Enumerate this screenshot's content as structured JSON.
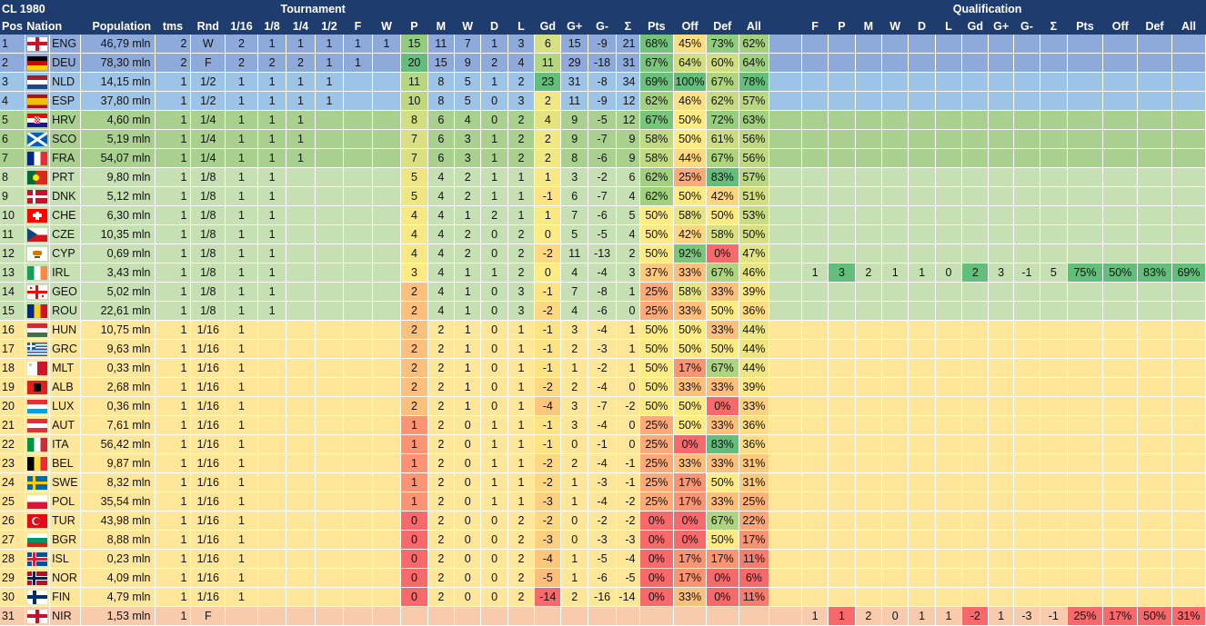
{
  "title": "CL 1980",
  "headers": {
    "group_tournament": "Tournament",
    "group_qualification": "Qualification",
    "main": [
      "Pos",
      "Nation",
      "Population",
      "tms",
      "Rnd",
      "1/16",
      "1/8",
      "1/4",
      "1/2",
      "F",
      "W",
      "P",
      "M",
      "W",
      "D",
      "L",
      "Gd",
      "G+",
      "G-",
      "Σ",
      "Pts",
      "Off",
      "Def",
      "All"
    ],
    "qual": [
      "F",
      "P",
      "M",
      "W",
      "D",
      "L",
      "Gd",
      "G+",
      "G-",
      "Σ",
      "Pts",
      "Off",
      "Def",
      "All"
    ]
  },
  "colors": {
    "header": "#1f3c6e",
    "band_blue": "#9dc3e6",
    "band_blue_dark": "#8eaadb",
    "band_green_dark": "#a9d08e",
    "band_green": "#c6e0b4",
    "band_yellow": "#ffe699",
    "band_salmon": "#f8cbad"
  },
  "rows": [
    {
      "pos": "1",
      "flag": "ENG",
      "nation": "ENG",
      "pop": "46,79 mln",
      "tms": "2",
      "rnd": "W",
      "rounds": [
        "2",
        "1",
        "1",
        "1",
        "1",
        "1"
      ],
      "p": "15",
      "m": "11",
      "w": "7",
      "d": "1",
      "l": "3",
      "gd": "6",
      "gp": "15",
      "gm": "-9",
      "s": "21",
      "pts": "68%",
      "off": "45%",
      "def": "73%",
      "all": "62%"
    },
    {
      "pos": "2",
      "flag": "DEU",
      "nation": "DEU",
      "pop": "78,30 mln",
      "tms": "2",
      "rnd": "F",
      "rounds": [
        "2",
        "2",
        "2",
        "1",
        "1",
        ""
      ],
      "p": "20",
      "m": "15",
      "w": "9",
      "d": "2",
      "l": "4",
      "gd": "11",
      "gp": "29",
      "gm": "-18",
      "s": "31",
      "pts": "67%",
      "off": "64%",
      "def": "60%",
      "all": "64%"
    },
    {
      "pos": "3",
      "flag": "NLD",
      "nation": "NLD",
      "pop": "14,15 mln",
      "tms": "1",
      "rnd": "1/2",
      "rounds": [
        "1",
        "1",
        "1",
        "1",
        "",
        ""
      ],
      "p": "11",
      "m": "8",
      "w": "5",
      "d": "1",
      "l": "2",
      "gd": "23",
      "gp": "31",
      "gm": "-8",
      "s": "34",
      "pts": "69%",
      "off": "100%",
      "def": "67%",
      "all": "78%"
    },
    {
      "pos": "4",
      "flag": "ESP",
      "nation": "ESP",
      "pop": "37,80 mln",
      "tms": "1",
      "rnd": "1/2",
      "rounds": [
        "1",
        "1",
        "1",
        "1",
        "",
        ""
      ],
      "p": "10",
      "m": "8",
      "w": "5",
      "d": "0",
      "l": "3",
      "gd": "2",
      "gp": "11",
      "gm": "-9",
      "s": "12",
      "pts": "62%",
      "off": "46%",
      "def": "62%",
      "all": "57%"
    },
    {
      "pos": "5",
      "flag": "HRV",
      "nation": "HRV",
      "pop": "4,60 mln",
      "tms": "1",
      "rnd": "1/4",
      "rounds": [
        "1",
        "1",
        "1",
        "",
        "",
        ""
      ],
      "p": "8",
      "m": "6",
      "w": "4",
      "d": "0",
      "l": "2",
      "gd": "4",
      "gp": "9",
      "gm": "-5",
      "s": "12",
      "pts": "67%",
      "off": "50%",
      "def": "72%",
      "all": "63%"
    },
    {
      "pos": "6",
      "flag": "SCO",
      "nation": "SCO",
      "pop": "5,19 mln",
      "tms": "1",
      "rnd": "1/4",
      "rounds": [
        "1",
        "1",
        "1",
        "",
        "",
        ""
      ],
      "p": "7",
      "m": "6",
      "w": "3",
      "d": "1",
      "l": "2",
      "gd": "2",
      "gp": "9",
      "gm": "-7",
      "s": "9",
      "pts": "58%",
      "off": "50%",
      "def": "61%",
      "all": "56%"
    },
    {
      "pos": "7",
      "flag": "FRA",
      "nation": "FRA",
      "pop": "54,07 mln",
      "tms": "1",
      "rnd": "1/4",
      "rounds": [
        "1",
        "1",
        "1",
        "",
        "",
        ""
      ],
      "p": "7",
      "m": "6",
      "w": "3",
      "d": "1",
      "l": "2",
      "gd": "2",
      "gp": "8",
      "gm": "-6",
      "s": "9",
      "pts": "58%",
      "off": "44%",
      "def": "67%",
      "all": "56%"
    },
    {
      "pos": "8",
      "flag": "PRT",
      "nation": "PRT",
      "pop": "9,80 mln",
      "tms": "1",
      "rnd": "1/8",
      "rounds": [
        "1",
        "1",
        "",
        "",
        "",
        ""
      ],
      "p": "5",
      "m": "4",
      "w": "2",
      "d": "1",
      "l": "1",
      "gd": "1",
      "gp": "3",
      "gm": "-2",
      "s": "6",
      "pts": "62%",
      "off": "25%",
      "def": "83%",
      "all": "57%"
    },
    {
      "pos": "9",
      "flag": "DNK",
      "nation": "DNK",
      "pop": "5,12 mln",
      "tms": "1",
      "rnd": "1/8",
      "rounds": [
        "1",
        "1",
        "",
        "",
        "",
        ""
      ],
      "p": "5",
      "m": "4",
      "w": "2",
      "d": "1",
      "l": "1",
      "gd": "-1",
      "gp": "6",
      "gm": "-7",
      "s": "4",
      "pts": "62%",
      "off": "50%",
      "def": "42%",
      "all": "51%"
    },
    {
      "pos": "10",
      "flag": "CHE",
      "nation": "CHE",
      "pop": "6,30 mln",
      "tms": "1",
      "rnd": "1/8",
      "rounds": [
        "1",
        "1",
        "",
        "",
        "",
        ""
      ],
      "p": "4",
      "m": "4",
      "w": "1",
      "d": "2",
      "l": "1",
      "gd": "1",
      "gp": "7",
      "gm": "-6",
      "s": "5",
      "pts": "50%",
      "off": "58%",
      "def": "50%",
      "all": "53%"
    },
    {
      "pos": "11",
      "flag": "CZE",
      "nation": "CZE",
      "pop": "10,35 mln",
      "tms": "1",
      "rnd": "1/8",
      "rounds": [
        "1",
        "1",
        "",
        "",
        "",
        ""
      ],
      "p": "4",
      "m": "4",
      "w": "2",
      "d": "0",
      "l": "2",
      "gd": "0",
      "gp": "5",
      "gm": "-5",
      "s": "4",
      "pts": "50%",
      "off": "42%",
      "def": "58%",
      "all": "50%"
    },
    {
      "pos": "12",
      "flag": "CYP",
      "nation": "CYP",
      "pop": "0,69 mln",
      "tms": "1",
      "rnd": "1/8",
      "rounds": [
        "1",
        "1",
        "",
        "",
        "",
        ""
      ],
      "p": "4",
      "m": "4",
      "w": "2",
      "d": "0",
      "l": "2",
      "gd": "-2",
      "gp": "11",
      "gm": "-13",
      "s": "2",
      "pts": "50%",
      "off": "92%",
      "def": "0%",
      "all": "47%"
    },
    {
      "pos": "13",
      "flag": "IRL",
      "nation": "IRL",
      "pop": "3,43 mln",
      "tms": "1",
      "rnd": "1/8",
      "rounds": [
        "1",
        "1",
        "",
        "",
        "",
        ""
      ],
      "p": "3",
      "m": "4",
      "w": "1",
      "d": "1",
      "l": "2",
      "gd": "0",
      "gp": "4",
      "gm": "-4",
      "s": "3",
      "pts": "37%",
      "off": "33%",
      "def": "67%",
      "all": "46%",
      "qual": {
        "f": "1",
        "p": "3",
        "m": "2",
        "w": "1",
        "d": "1",
        "l": "0",
        "gd": "2",
        "gp": "3",
        "gm": "-1",
        "s": "5",
        "pts": "75%",
        "off": "50%",
        "def": "83%",
        "all": "69%"
      }
    },
    {
      "pos": "14",
      "flag": "GEO",
      "nation": "GEO",
      "pop": "5,02 mln",
      "tms": "1",
      "rnd": "1/8",
      "rounds": [
        "1",
        "1",
        "",
        "",
        "",
        ""
      ],
      "p": "2",
      "m": "4",
      "w": "1",
      "d": "0",
      "l": "3",
      "gd": "-1",
      "gp": "7",
      "gm": "-8",
      "s": "1",
      "pts": "25%",
      "off": "58%",
      "def": "33%",
      "all": "39%"
    },
    {
      "pos": "15",
      "flag": "ROU",
      "nation": "ROU",
      "pop": "22,61 mln",
      "tms": "1",
      "rnd": "1/8",
      "rounds": [
        "1",
        "1",
        "",
        "",
        "",
        ""
      ],
      "p": "2",
      "m": "4",
      "w": "1",
      "d": "0",
      "l": "3",
      "gd": "-2",
      "gp": "4",
      "gm": "-6",
      "s": "0",
      "pts": "25%",
      "off": "33%",
      "def": "50%",
      "all": "36%"
    },
    {
      "pos": "16",
      "flag": "HUN",
      "nation": "HUN",
      "pop": "10,75 mln",
      "tms": "1",
      "rnd": "1/16",
      "rounds": [
        "1",
        "",
        "",
        "",
        "",
        ""
      ],
      "p": "2",
      "m": "2",
      "w": "1",
      "d": "0",
      "l": "1",
      "gd": "-1",
      "gp": "3",
      "gm": "-4",
      "s": "1",
      "pts": "50%",
      "off": "50%",
      "def": "33%",
      "all": "44%"
    },
    {
      "pos": "17",
      "flag": "GRC",
      "nation": "GRC",
      "pop": "9,63 mln",
      "tms": "1",
      "rnd": "1/16",
      "rounds": [
        "1",
        "",
        "",
        "",
        "",
        ""
      ],
      "p": "2",
      "m": "2",
      "w": "1",
      "d": "0",
      "l": "1",
      "gd": "-1",
      "gp": "2",
      "gm": "-3",
      "s": "1",
      "pts": "50%",
      "off": "50%",
      "def": "50%",
      "all": "44%"
    },
    {
      "pos": "18",
      "flag": "MLT",
      "nation": "MLT",
      "pop": "0,33 mln",
      "tms": "1",
      "rnd": "1/16",
      "rounds": [
        "1",
        "",
        "",
        "",
        "",
        ""
      ],
      "p": "2",
      "m": "2",
      "w": "1",
      "d": "0",
      "l": "1",
      "gd": "-1",
      "gp": "1",
      "gm": "-2",
      "s": "1",
      "pts": "50%",
      "off": "17%",
      "def": "67%",
      "all": "44%"
    },
    {
      "pos": "19",
      "flag": "ALB",
      "nation": "ALB",
      "pop": "2,68 mln",
      "tms": "1",
      "rnd": "1/16",
      "rounds": [
        "1",
        "",
        "",
        "",
        "",
        ""
      ],
      "p": "2",
      "m": "2",
      "w": "1",
      "d": "0",
      "l": "1",
      "gd": "-2",
      "gp": "2",
      "gm": "-4",
      "s": "0",
      "pts": "50%",
      "off": "33%",
      "def": "33%",
      "all": "39%"
    },
    {
      "pos": "20",
      "flag": "LUX",
      "nation": "LUX",
      "pop": "0,36 mln",
      "tms": "1",
      "rnd": "1/16",
      "rounds": [
        "1",
        "",
        "",
        "",
        "",
        ""
      ],
      "p": "2",
      "m": "2",
      "w": "1",
      "d": "0",
      "l": "1",
      "gd": "-4",
      "gp": "3",
      "gm": "-7",
      "s": "-2",
      "pts": "50%",
      "off": "50%",
      "def": "0%",
      "all": "33%"
    },
    {
      "pos": "21",
      "flag": "AUT",
      "nation": "AUT",
      "pop": "7,61 mln",
      "tms": "1",
      "rnd": "1/16",
      "rounds": [
        "1",
        "",
        "",
        "",
        "",
        ""
      ],
      "p": "1",
      "m": "2",
      "w": "0",
      "d": "1",
      "l": "1",
      "gd": "-1",
      "gp": "3",
      "gm": "-4",
      "s": "0",
      "pts": "25%",
      "off": "50%",
      "def": "33%",
      "all": "36%"
    },
    {
      "pos": "22",
      "flag": "ITA",
      "nation": "ITA",
      "pop": "56,42 mln",
      "tms": "1",
      "rnd": "1/16",
      "rounds": [
        "1",
        "",
        "",
        "",
        "",
        ""
      ],
      "p": "1",
      "m": "2",
      "w": "0",
      "d": "1",
      "l": "1",
      "gd": "-1",
      "gp": "0",
      "gm": "-1",
      "s": "0",
      "pts": "25%",
      "off": "0%",
      "def": "83%",
      "all": "36%"
    },
    {
      "pos": "23",
      "flag": "BEL",
      "nation": "BEL",
      "pop": "9,87 mln",
      "tms": "1",
      "rnd": "1/16",
      "rounds": [
        "1",
        "",
        "",
        "",
        "",
        ""
      ],
      "p": "1",
      "m": "2",
      "w": "0",
      "d": "1",
      "l": "1",
      "gd": "-2",
      "gp": "2",
      "gm": "-4",
      "s": "-1",
      "pts": "25%",
      "off": "33%",
      "def": "33%",
      "all": "31%"
    },
    {
      "pos": "24",
      "flag": "SWE",
      "nation": "SWE",
      "pop": "8,32 mln",
      "tms": "1",
      "rnd": "1/16",
      "rounds": [
        "1",
        "",
        "",
        "",
        "",
        ""
      ],
      "p": "1",
      "m": "2",
      "w": "0",
      "d": "1",
      "l": "1",
      "gd": "-2",
      "gp": "1",
      "gm": "-3",
      "s": "-1",
      "pts": "25%",
      "off": "17%",
      "def": "50%",
      "all": "31%"
    },
    {
      "pos": "25",
      "flag": "POL",
      "nation": "POL",
      "pop": "35,54 mln",
      "tms": "1",
      "rnd": "1/16",
      "rounds": [
        "1",
        "",
        "",
        "",
        "",
        ""
      ],
      "p": "1",
      "m": "2",
      "w": "0",
      "d": "1",
      "l": "1",
      "gd": "-3",
      "gp": "1",
      "gm": "-4",
      "s": "-2",
      "pts": "25%",
      "off": "17%",
      "def": "33%",
      "all": "25%"
    },
    {
      "pos": "26",
      "flag": "TUR",
      "nation": "TUR",
      "pop": "43,98 mln",
      "tms": "1",
      "rnd": "1/16",
      "rounds": [
        "1",
        "",
        "",
        "",
        "",
        ""
      ],
      "p": "0",
      "m": "2",
      "w": "0",
      "d": "0",
      "l": "2",
      "gd": "-2",
      "gp": "0",
      "gm": "-2",
      "s": "-2",
      "pts": "0%",
      "off": "0%",
      "def": "67%",
      "all": "22%"
    },
    {
      "pos": "27",
      "flag": "BGR",
      "nation": "BGR",
      "pop": "8,88 mln",
      "tms": "1",
      "rnd": "1/16",
      "rounds": [
        "1",
        "",
        "",
        "",
        "",
        ""
      ],
      "p": "0",
      "m": "2",
      "w": "0",
      "d": "0",
      "l": "2",
      "gd": "-3",
      "gp": "0",
      "gm": "-3",
      "s": "-3",
      "pts": "0%",
      "off": "0%",
      "def": "50%",
      "all": "17%"
    },
    {
      "pos": "28",
      "flag": "ISL",
      "nation": "ISL",
      "pop": "0,23 mln",
      "tms": "1",
      "rnd": "1/16",
      "rounds": [
        "1",
        "",
        "",
        "",
        "",
        ""
      ],
      "p": "0",
      "m": "2",
      "w": "0",
      "d": "0",
      "l": "2",
      "gd": "-4",
      "gp": "1",
      "gm": "-5",
      "s": "-4",
      "pts": "0%",
      "off": "17%",
      "def": "17%",
      "all": "11%"
    },
    {
      "pos": "29",
      "flag": "NOR",
      "nation": "NOR",
      "pop": "4,09 mln",
      "tms": "1",
      "rnd": "1/16",
      "rounds": [
        "1",
        "",
        "",
        "",
        "",
        ""
      ],
      "p": "0",
      "m": "2",
      "w": "0",
      "d": "0",
      "l": "2",
      "gd": "-5",
      "gp": "1",
      "gm": "-6",
      "s": "-5",
      "pts": "0%",
      "off": "17%",
      "def": "0%",
      "all": "6%"
    },
    {
      "pos": "30",
      "flag": "FIN",
      "nation": "FIN",
      "pop": "4,79 mln",
      "tms": "1",
      "rnd": "1/16",
      "rounds": [
        "1",
        "",
        "",
        "",
        "",
        ""
      ],
      "p": "0",
      "m": "2",
      "w": "0",
      "d": "0",
      "l": "2",
      "gd": "-14",
      "gp": "2",
      "gm": "-16",
      "s": "-14",
      "pts": "0%",
      "off": "33%",
      "def": "0%",
      "all": "11%"
    },
    {
      "pos": "31",
      "flag": "NIR",
      "nation": "NIR",
      "pop": "1,53 mln",
      "tms": "1",
      "rnd": "F",
      "rounds": [
        "",
        "",
        "",
        "",
        "",
        ""
      ],
      "p": "",
      "m": "",
      "w": "",
      "d": "",
      "l": "",
      "gd": "",
      "gp": "",
      "gm": "",
      "s": "",
      "pts": "",
      "off": "",
      "def": "",
      "all": "",
      "qual": {
        "f": "1",
        "p": "1",
        "m": "2",
        "w": "0",
        "d": "1",
        "l": "1",
        "gd": "-2",
        "gp": "1",
        "gm": "-3",
        "s": "-1",
        "pts": "25%",
        "off": "17%",
        "def": "50%",
        "all": "31%"
      }
    }
  ]
}
